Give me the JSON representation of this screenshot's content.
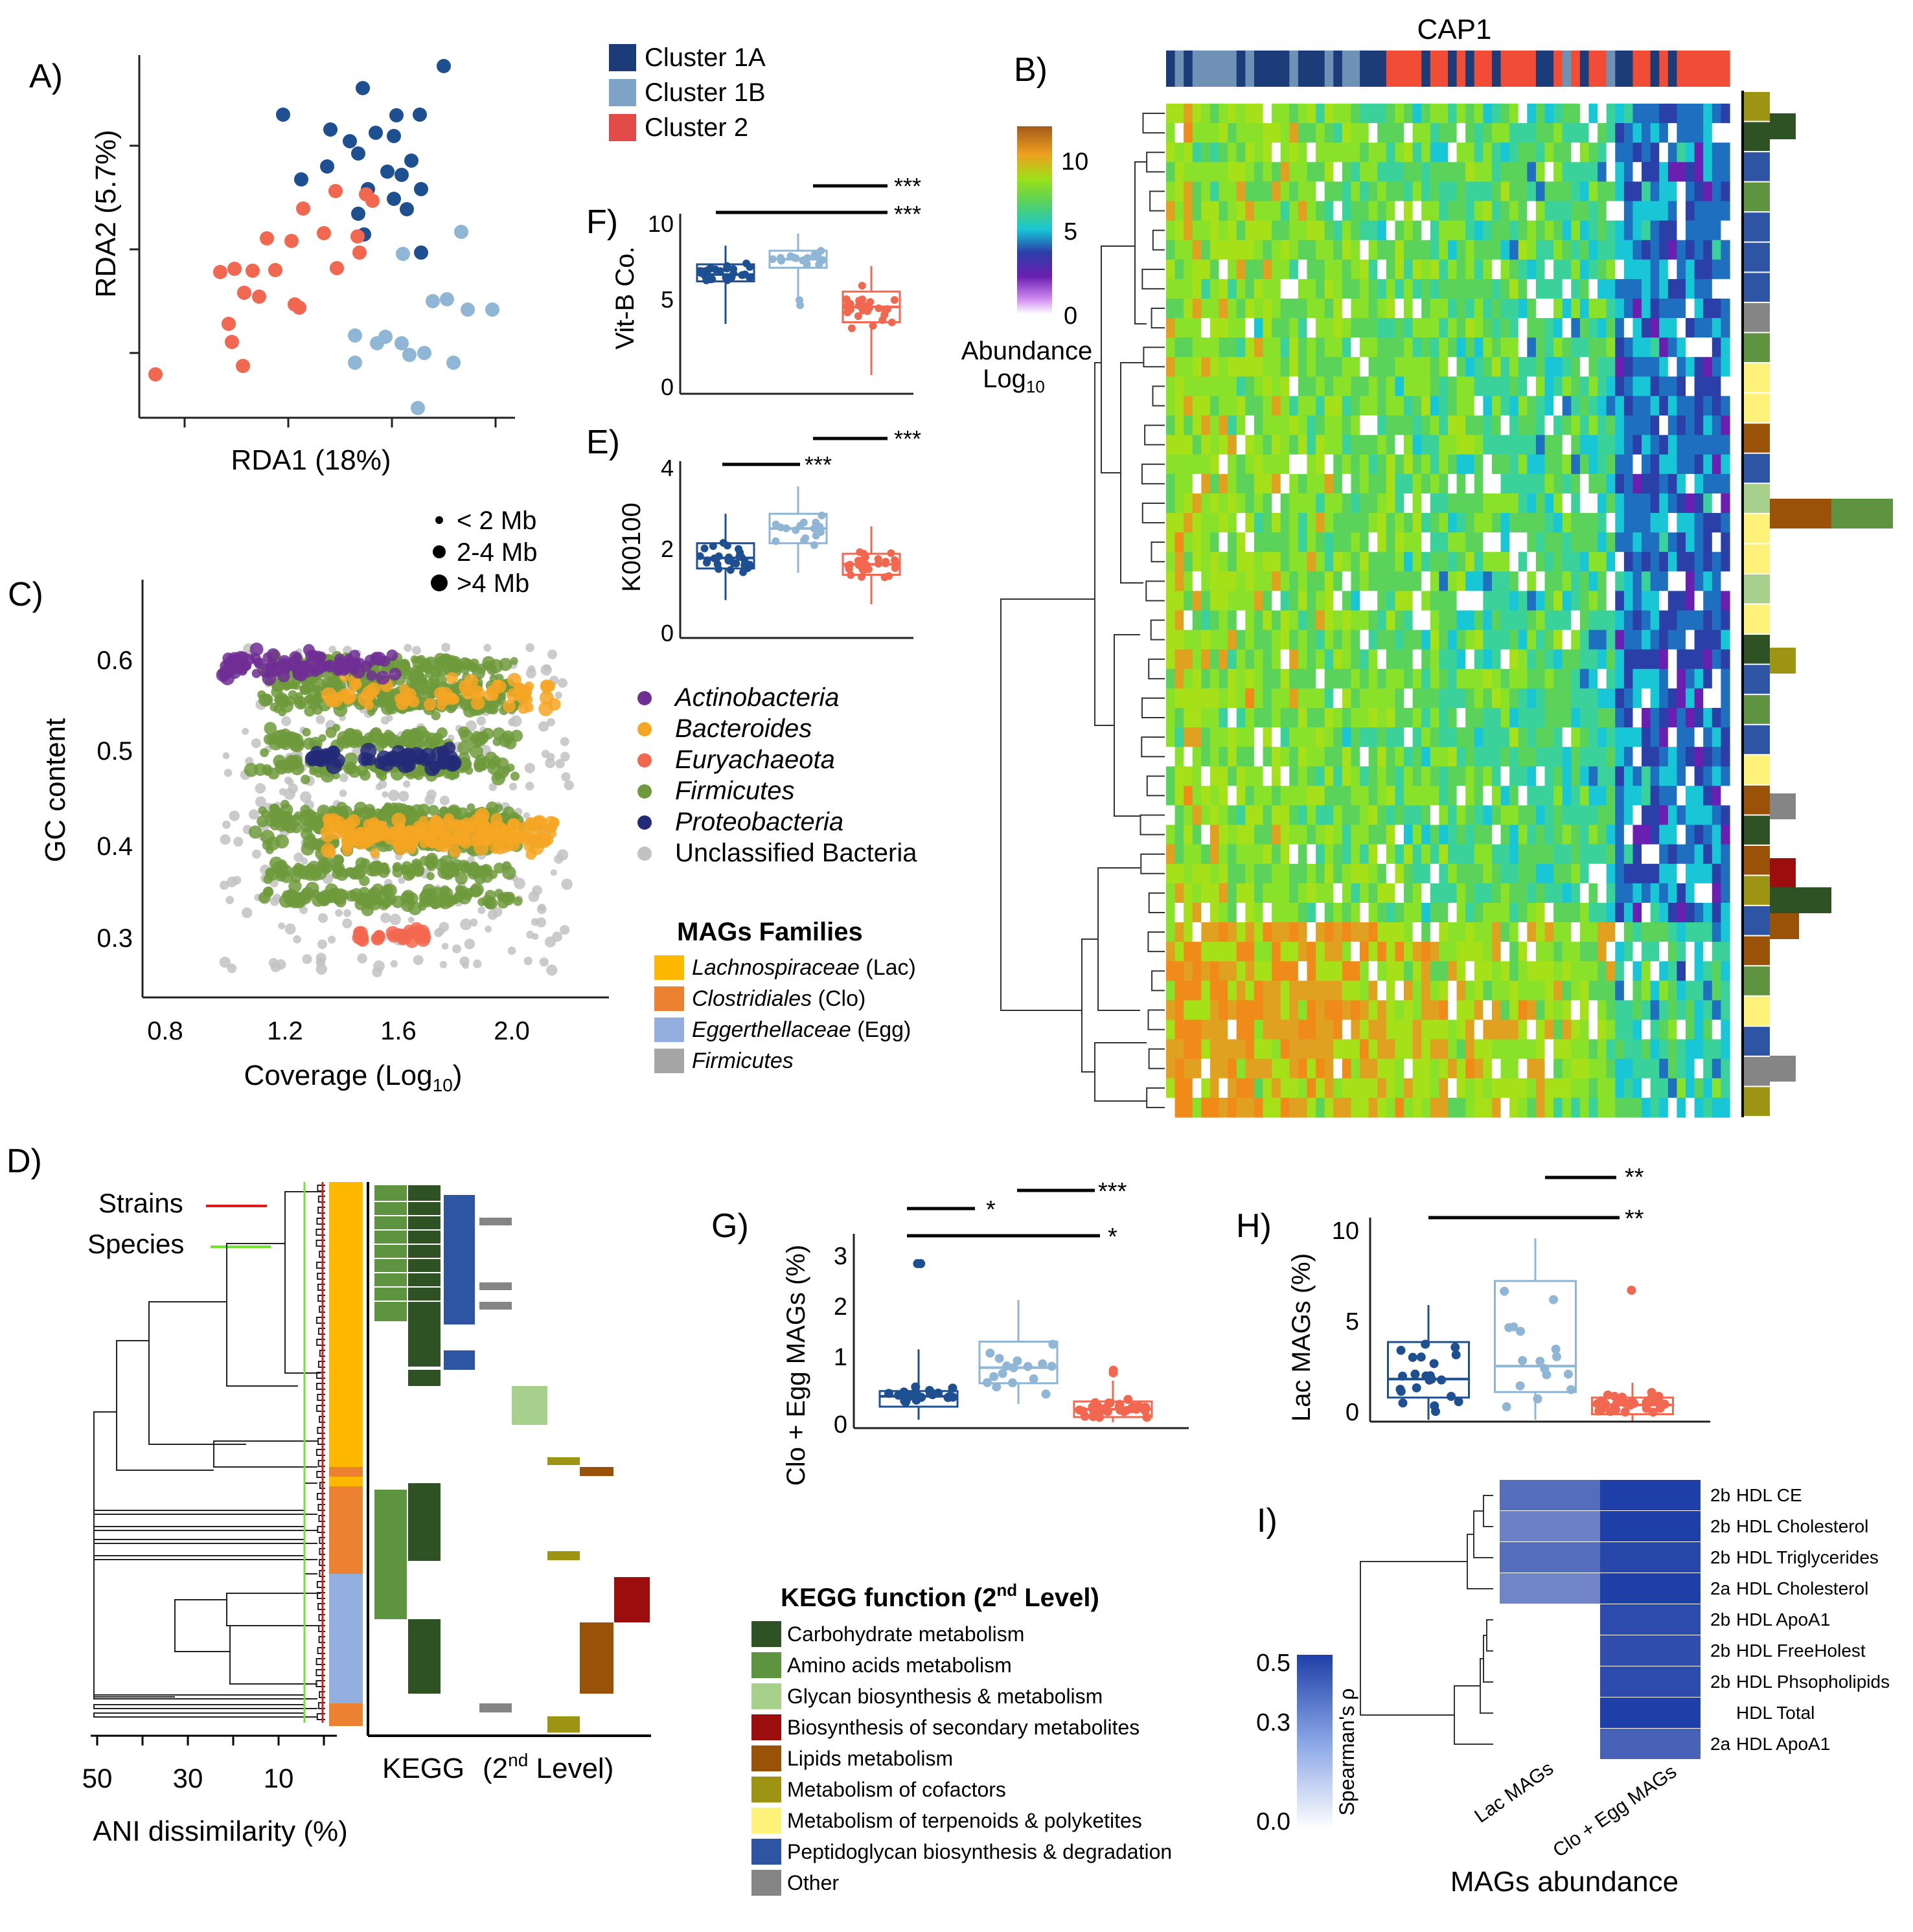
{
  "colors": {
    "cluster_1a": "#1d4f91",
    "cluster_1b": "#8fb6d4",
    "cluster_2": "#f2674f",
    "actinobacteria": "#6f2e94",
    "bacteroides": "#f5a623",
    "euryachaeota": "#f2674f",
    "firmicutes": "#6f9a3c",
    "proteobacteria": "#232a78",
    "unclassified": "#c2c2c2"
  },
  "legend_clusters": {
    "items": [
      {
        "label": "Cluster 1A",
        "color": "#1b3c78"
      },
      {
        "label": "Cluster 1B",
        "color": "#7ea3c7"
      },
      {
        "label": "Cluster 2",
        "color": "#e34a4a"
      }
    ]
  },
  "panel_a": {
    "letter": "A)",
    "xlabel": "RDA1 (18%)",
    "ylabel": "RDA2 (5.7%)"
  },
  "panel_b": {
    "letter": "B)",
    "top_label": "CAP1",
    "colorbar_title_1": "Abundance",
    "colorbar_title_2": "Log",
    "colorbar_title_sub": "10",
    "colorbar_ticks": [
      "10",
      "5",
      "0"
    ]
  },
  "panel_c": {
    "letter": "C)",
    "xlabel_main": "Coverage (Log",
    "xlabel_sub": "10",
    "xlabel_end": ")",
    "ylabel": "GC content",
    "xticks": [
      "0.8",
      "1.2",
      "1.6",
      "2.0"
    ],
    "yticks": [
      "0.6",
      "0.5",
      "0.4",
      "0.3"
    ],
    "size_legend": [
      "< 2 Mb",
      "2-4 Mb",
      ">4 Mb"
    ],
    "phyla": [
      {
        "label": "Actinobacteria",
        "italic": true,
        "color": "#6f2e94"
      },
      {
        "label": "Bacteroides",
        "italic": true,
        "color": "#f5a623"
      },
      {
        "label": "Euryachaeota",
        "italic": true,
        "color": "#f2674f"
      },
      {
        "label": "Firmicutes",
        "italic": true,
        "color": "#6f9a3c"
      },
      {
        "label": "Proteobacteria",
        "italic": true,
        "color": "#232a78"
      },
      {
        "label": "Unclassified Bacteria",
        "italic": false,
        "color": "#c2c2c2"
      }
    ]
  },
  "mags_families": {
    "title": "MAGs Families",
    "items": [
      {
        "name": "Lachnospiraceae",
        "abbr": " (Lac)",
        "color": "#ffb800"
      },
      {
        "name": "Clostridiales",
        "abbr": " (Clo)",
        "color": "#ed8132"
      },
      {
        "name": "Eggerthellaceae",
        "abbr": " (Egg)",
        "color": "#92afe0"
      },
      {
        "name": "Firmicutes",
        "abbr": "",
        "color": "#a6a6a6"
      }
    ]
  },
  "panel_d": {
    "letter": "D)",
    "strains_label": "Strains",
    "species_label": "Species",
    "xlabel": "ANI dissimilarity (%)",
    "xticks": [
      "50",
      "30",
      "10"
    ],
    "kegg_label": "KEGG",
    "kegg_label2_pre": "(2",
    "kegg_label2_sup": "nd",
    "kegg_label2_post": " Level)"
  },
  "panel_e": {
    "letter": "E)",
    "ylabel": "K00100",
    "yticks": [
      "4",
      "2",
      "0"
    ],
    "sig": [
      "***",
      "***"
    ]
  },
  "panel_f": {
    "letter": "F)",
    "ylabel": "Vit-B Co.",
    "yticks": [
      "10",
      "5",
      "0"
    ],
    "sig": [
      "***",
      "***"
    ]
  },
  "panel_g": {
    "letter": "G)",
    "ylabel": "Clo + Egg MAGs (%)",
    "yticks": [
      "3",
      "2",
      "1",
      "0"
    ],
    "sig": [
      "*",
      "***",
      "*"
    ]
  },
  "panel_h": {
    "letter": "H)",
    "ylabel": "Lac MAGs  (%)",
    "yticks": [
      "10",
      "5",
      "0"
    ],
    "sig": [
      "**",
      "**"
    ]
  },
  "kegg_legend": {
    "title_pre": "KEGG function (2",
    "title_sup": "nd",
    "title_post": " Level)",
    "items": [
      {
        "label": "Carbohydrate metabolism",
        "color": "#2f5224"
      },
      {
        "label": "Amino acids metabolism",
        "color": "#5e9440"
      },
      {
        "label": "Glycan biosynthesis & metabolism",
        "color": "#a7d08c"
      },
      {
        "label": "Biosynthesis of secondary metabolites",
        "color": "#9c0e0e"
      },
      {
        "label": "Lipids metabolism",
        "color": "#9a5208"
      },
      {
        "label": "Metabolism of cofactors",
        "color": "#9c9412"
      },
      {
        "label": "Metabolism of terpenoids & polyketites",
        "color": "#fff27a"
      },
      {
        "label": "Peptidoglycan biosynthesis & degradation",
        "color": "#2d55a3"
      },
      {
        "label": "Other",
        "color": "#858585"
      }
    ]
  },
  "panel_i": {
    "letter": "I)",
    "rows": [
      {
        "prefix": "2b",
        "label": "HDL  CE",
        "lac": 0.38,
        "cloegg": 0.5
      },
      {
        "prefix": "2b",
        "label": "HDL  Cholesterol",
        "lac": 0.33,
        "cloegg": 0.5
      },
      {
        "prefix": "2b",
        "label": "HDL  Triglycerides",
        "lac": 0.38,
        "cloegg": 0.48
      },
      {
        "prefix": "2a",
        "label": "HDL  Cholesterol",
        "lac": 0.32,
        "cloegg": 0.5
      },
      {
        "prefix": "2b",
        "label": "HDL  ApoA1",
        "lac": null,
        "cloegg": 0.47
      },
      {
        "prefix": "2b",
        "label": "HDL  FreeHolest",
        "lac": null,
        "cloegg": 0.46
      },
      {
        "prefix": "2b",
        "label": "HDL  Phsopholipids",
        "lac": null,
        "cloegg": 0.47
      },
      {
        "prefix": "",
        "label": "HDL  Total",
        "lac": null,
        "cloegg": 0.5
      },
      {
        "prefix": "2a",
        "label": "HDL  ApoA1",
        "lac": null,
        "cloegg": 0.41
      }
    ],
    "col_labels": [
      "Lac MAGs",
      "Clo + Egg MAGs"
    ],
    "xlabel": "MAGs abundance",
    "scale_ticks": [
      "0.5",
      "0.3",
      "0.0"
    ],
    "scale_title": "Spearman's ρ"
  }
}
